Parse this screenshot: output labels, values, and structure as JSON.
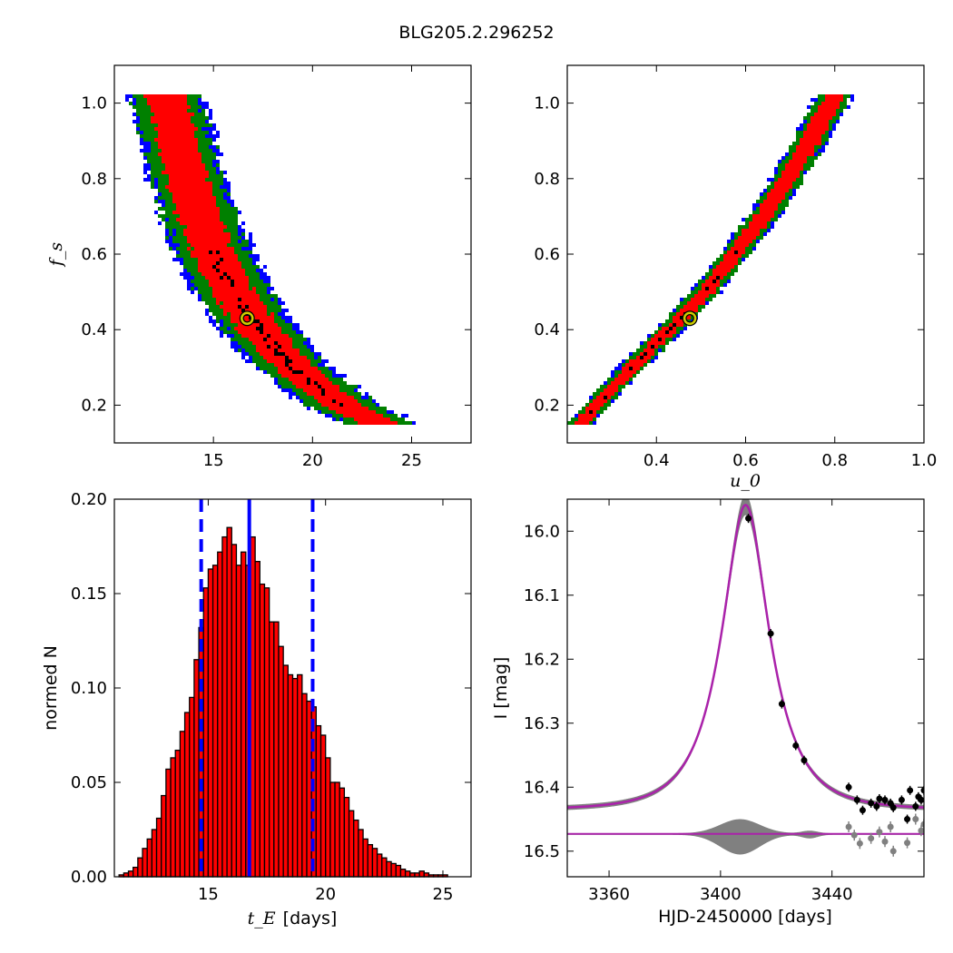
{
  "figure_title": "BLG205.2.296252",
  "chart_data": [
    {
      "id": "fs_vs_tE",
      "type": "heatmap",
      "xlabel": "",
      "ylabel": "f_s",
      "xlim": [
        10,
        28
      ],
      "ylim": [
        0.1,
        1.1
      ],
      "xticks": [
        15,
        20,
        25
      ],
      "yticks": [
        0.2,
        0.4,
        0.6,
        0.8,
        1.0
      ],
      "ytick_labels": [
        "0.2",
        "0.4",
        "0.6",
        "0.8",
        "1.0"
      ],
      "best_fit": {
        "x": 16.7,
        "y": 0.43
      },
      "curve": {
        "knots_x": [
          0.15,
          0.2,
          0.3,
          0.4,
          0.5,
          0.6,
          0.7,
          0.8,
          0.9,
          1.0
        ],
        "knots_y": [
          23.5,
          21.5,
          19.0,
          17.3,
          16.0,
          15.0,
          14.3,
          13.7,
          13.2,
          12.7
        ]
      },
      "colors": {
        "core": "#000000",
        "sigma1": "#ff0000",
        "sigma2": "#008000",
        "sigma3": "#0000ff",
        "marker": "#cccc00"
      }
    },
    {
      "id": "fs_vs_u0",
      "type": "heatmap",
      "xlabel": "u_0",
      "ylabel": "",
      "xlim": [
        0.2,
        1.0
      ],
      "ylim": [
        0.1,
        1.1
      ],
      "xticks": [
        0.4,
        0.6,
        0.8,
        1.0
      ],
      "xtick_labels": [
        "0.4",
        "0.6",
        "0.8",
        "1.0"
      ],
      "yticks": [
        0.2,
        0.4,
        0.6,
        0.8,
        1.0
      ],
      "ytick_labels": [
        "0.2",
        "0.4",
        "0.6",
        "0.8",
        "1.0"
      ],
      "best_fit": {
        "x": 0.475,
        "y": 0.43
      },
      "curve": {
        "knots_x": [
          0.15,
          0.2,
          0.3,
          0.4,
          0.5,
          0.6,
          0.7,
          0.8,
          0.9,
          1.0
        ],
        "knots_y": [
          0.23,
          0.265,
          0.345,
          0.43,
          0.51,
          0.575,
          0.64,
          0.695,
          0.745,
          0.79
        ]
      },
      "colors": {
        "core": "#000000",
        "sigma1": "#ff0000",
        "sigma2": "#008000",
        "sigma3": "#0000ff",
        "marker": "#cccc00"
      }
    },
    {
      "id": "tE_histogram",
      "type": "bar",
      "xlabel": "t_E",
      "xlabel_unit": "[days]",
      "ylabel": "normed N",
      "xlim": [
        11,
        26.2
      ],
      "ylim": [
        0,
        0.2
      ],
      "xticks": [
        15,
        20,
        25
      ],
      "yticks": [
        0,
        0.05,
        0.1,
        0.15,
        0.2
      ],
      "ytick_labels": [
        "0.00",
        "0.05",
        "0.10",
        "0.15",
        "0.20"
      ],
      "bin_start": 11.2,
      "bin_width": 0.2,
      "values": [
        0.001,
        0.002,
        0.003,
        0.005,
        0.01,
        0.015,
        0.02,
        0.025,
        0.031,
        0.043,
        0.057,
        0.063,
        0.067,
        0.077,
        0.087,
        0.095,
        0.115,
        0.132,
        0.153,
        0.163,
        0.165,
        0.172,
        0.18,
        0.185,
        0.176,
        0.165,
        0.172,
        0.165,
        0.18,
        0.167,
        0.155,
        0.153,
        0.135,
        0.135,
        0.122,
        0.112,
        0.107,
        0.105,
        0.107,
        0.097,
        0.093,
        0.09,
        0.08,
        0.075,
        0.063,
        0.05,
        0.05,
        0.047,
        0.042,
        0.035,
        0.03,
        0.025,
        0.02,
        0.017,
        0.015,
        0.012,
        0.01,
        0.008,
        0.007,
        0.006,
        0.004,
        0.003,
        0.002,
        0.002,
        0.003,
        0.002,
        0.001,
        0.001,
        0.001,
        0.001
      ],
      "median": 16.75,
      "lower": 14.7,
      "upper": 19.45,
      "colors": {
        "bar": "#ff0000",
        "edge": "#000000",
        "lines": "#0000ff"
      }
    },
    {
      "id": "lightcurve",
      "type": "line",
      "xlabel": "HJD-2450000 [days]",
      "ylabel": "I [mag]",
      "xlim": [
        3345,
        3473
      ],
      "ylim": [
        16.54,
        15.95
      ],
      "xticks": [
        3360,
        3400,
        3440
      ],
      "yticks": [
        16.0,
        16.1,
        16.2,
        16.3,
        16.4,
        16.5
      ],
      "ytick_labels": [
        "16.0",
        "16.1",
        "16.2",
        "16.3",
        "16.4",
        "16.5"
      ],
      "model": {
        "t0": 3409.0,
        "tE": 16.7,
        "u0": 0.475,
        "fs": 0.43,
        "baseline": 16.435,
        "residual_offset": 16.473
      },
      "points": [
        {
          "t": 3410,
          "mag": 15.98
        },
        {
          "t": 3418,
          "mag": 16.16
        },
        {
          "t": 3422,
          "mag": 16.27
        },
        {
          "t": 3427,
          "mag": 16.335
        },
        {
          "t": 3430,
          "mag": 16.358
        },
        {
          "t": 3446,
          "mag": 16.4
        },
        {
          "t": 3449,
          "mag": 16.42
        },
        {
          "t": 3451,
          "mag": 16.436
        },
        {
          "t": 3454,
          "mag": 16.425
        },
        {
          "t": 3456,
          "mag": 16.43
        },
        {
          "t": 3457,
          "mag": 16.418
        },
        {
          "t": 3459,
          "mag": 16.42
        },
        {
          "t": 3461,
          "mag": 16.425
        },
        {
          "t": 3462,
          "mag": 16.432
        },
        {
          "t": 3465,
          "mag": 16.42
        },
        {
          "t": 3467,
          "mag": 16.45
        },
        {
          "t": 3468,
          "mag": 16.405
        },
        {
          "t": 3470,
          "mag": 16.43
        },
        {
          "t": 3471,
          "mag": 16.415
        },
        {
          "t": 3472,
          "mag": 16.42
        },
        {
          "t": 3473,
          "mag": 16.405
        }
      ],
      "residual_points": [
        {
          "t": 3446,
          "mag": 16.462
        },
        {
          "t": 3448,
          "mag": 16.475
        },
        {
          "t": 3450,
          "mag": 16.488
        },
        {
          "t": 3454,
          "mag": 16.48
        },
        {
          "t": 3457,
          "mag": 16.47
        },
        {
          "t": 3459,
          "mag": 16.485
        },
        {
          "t": 3461,
          "mag": 16.462
        },
        {
          "t": 3462,
          "mag": 16.5
        },
        {
          "t": 3467,
          "mag": 16.487
        },
        {
          "t": 3470,
          "mag": 16.45
        },
        {
          "t": 3472,
          "mag": 16.468
        },
        {
          "t": 3473,
          "mag": 16.458
        }
      ],
      "colors": {
        "model": "#aa22aa",
        "band": "#808080",
        "points": "#000000",
        "residuals": "#808080"
      }
    }
  ]
}
